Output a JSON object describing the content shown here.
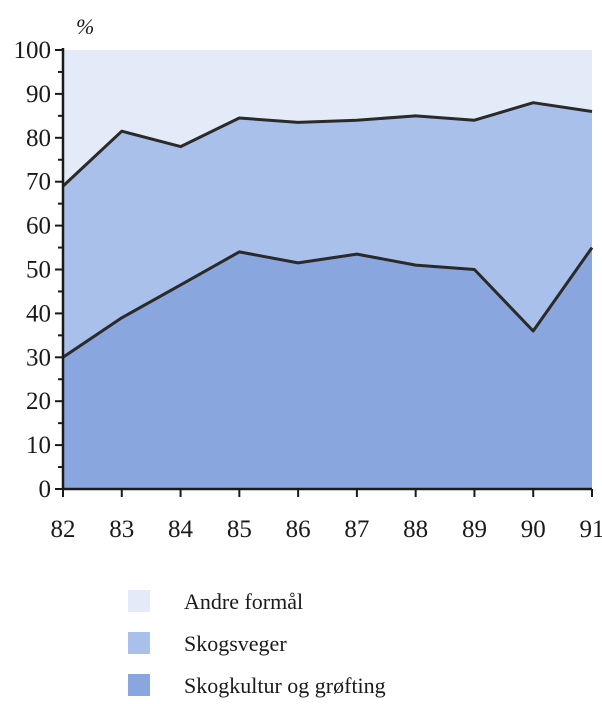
{
  "chart_data": {
    "type": "area",
    "stacked": true,
    "y_unit": "%",
    "x": [
      "82",
      "83",
      "84",
      "85",
      "86",
      "87",
      "88",
      "89",
      "90",
      "91"
    ],
    "ylim": [
      0,
      100
    ],
    "yticks": [
      "0",
      "10",
      "20",
      "30",
      "40",
      "50",
      "60",
      "70",
      "80",
      "90",
      "100"
    ],
    "series": [
      {
        "name": "Skogkultur og grøfting",
        "values": [
          30,
          39,
          46.5,
          54,
          51.5,
          53.5,
          51,
          50,
          36,
          55
        ],
        "color": "#8aa6de"
      },
      {
        "name": "Skogsveger",
        "values": [
          39,
          42.5,
          31.5,
          30.5,
          32,
          30.5,
          34,
          34,
          52,
          31
        ],
        "color": "#a9c0ea"
      },
      {
        "name": "Andre formål",
        "values": [
          31,
          18.5,
          22,
          15.5,
          16.5,
          16,
          15,
          16,
          12,
          14
        ],
        "color": "#e3ebf9"
      }
    ],
    "legend_position": "bottom",
    "grid": false
  }
}
